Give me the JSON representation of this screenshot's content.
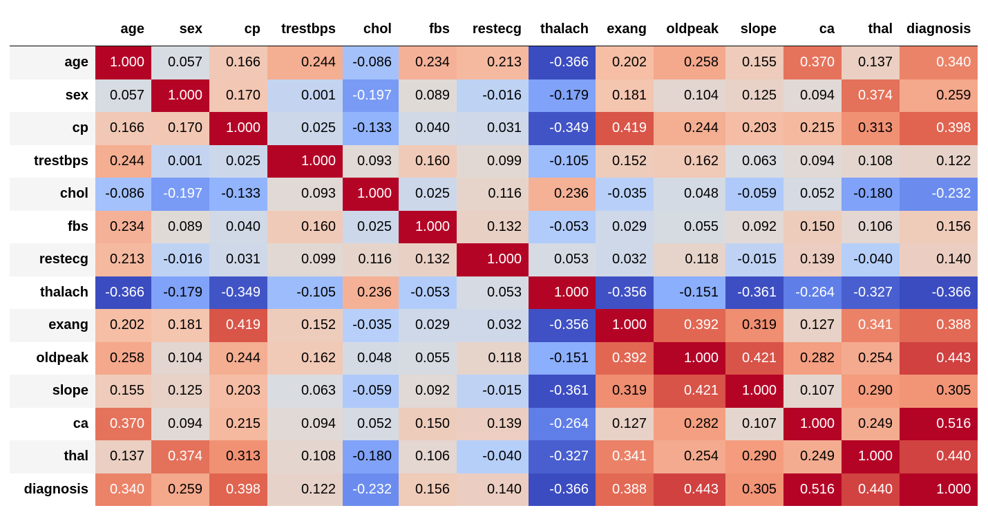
{
  "chart_data": {
    "type": "heatmap",
    "colormap": "coolwarm",
    "value_format": "0.000",
    "variables": [
      "age",
      "sex",
      "cp",
      "trestbps",
      "chol",
      "fbs",
      "restecg",
      "thalach",
      "exang",
      "oldpeak",
      "slope",
      "ca",
      "thal",
      "diagnosis"
    ],
    "matrix": [
      [
        1.0,
        0.057,
        0.166,
        0.244,
        -0.086,
        0.234,
        0.213,
        -0.366,
        0.202,
        0.258,
        0.155,
        0.37,
        0.137,
        0.34
      ],
      [
        0.057,
        1.0,
        0.17,
        0.001,
        -0.197,
        0.089,
        -0.016,
        -0.179,
        0.181,
        0.104,
        0.125,
        0.094,
        0.374,
        0.259
      ],
      [
        0.166,
        0.17,
        1.0,
        0.025,
        -0.133,
        0.04,
        0.031,
        -0.349,
        0.419,
        0.244,
        0.203,
        0.215,
        0.313,
        0.398
      ],
      [
        0.244,
        0.001,
        0.025,
        1.0,
        0.093,
        0.16,
        0.099,
        -0.105,
        0.152,
        0.162,
        0.063,
        0.094,
        0.108,
        0.122
      ],
      [
        -0.086,
        -0.197,
        -0.133,
        0.093,
        1.0,
        0.025,
        0.116,
        0.236,
        -0.035,
        0.048,
        -0.059,
        0.052,
        -0.18,
        -0.232
      ],
      [
        0.234,
        0.089,
        0.04,
        0.16,
        0.025,
        1.0,
        0.132,
        -0.053,
        0.029,
        0.055,
        0.092,
        0.15,
        0.106,
        0.156
      ],
      [
        0.213,
        -0.016,
        0.031,
        0.099,
        0.116,
        0.132,
        1.0,
        0.053,
        0.032,
        0.118,
        -0.015,
        0.139,
        -0.04,
        0.14
      ],
      [
        -0.366,
        -0.179,
        -0.349,
        -0.105,
        0.236,
        -0.053,
        0.053,
        1.0,
        -0.356,
        -0.151,
        -0.361,
        -0.264,
        -0.327,
        -0.366
      ],
      [
        0.202,
        0.181,
        0.419,
        0.152,
        -0.035,
        0.029,
        0.032,
        -0.356,
        1.0,
        0.392,
        0.319,
        0.127,
        0.341,
        0.388
      ],
      [
        0.258,
        0.104,
        0.244,
        0.162,
        0.048,
        0.055,
        0.118,
        -0.151,
        0.392,
        1.0,
        0.421,
        0.282,
        0.254,
        0.443
      ],
      [
        0.155,
        0.125,
        0.203,
        0.063,
        -0.059,
        0.092,
        -0.015,
        -0.361,
        0.319,
        0.421,
        1.0,
        0.107,
        0.29,
        0.305
      ],
      [
        0.37,
        0.094,
        0.215,
        0.094,
        0.052,
        0.15,
        0.139,
        -0.264,
        0.127,
        0.282,
        0.107,
        1.0,
        0.249,
        0.516
      ],
      [
        0.137,
        0.374,
        0.313,
        0.108,
        -0.18,
        0.106,
        -0.04,
        -0.327,
        0.341,
        0.254,
        0.29,
        0.249,
        1.0,
        0.44
      ],
      [
        0.34,
        0.259,
        0.398,
        0.122,
        -0.232,
        0.156,
        0.14,
        -0.366,
        0.388,
        0.443,
        0.305,
        0.516,
        0.44,
        1.0
      ]
    ]
  }
}
